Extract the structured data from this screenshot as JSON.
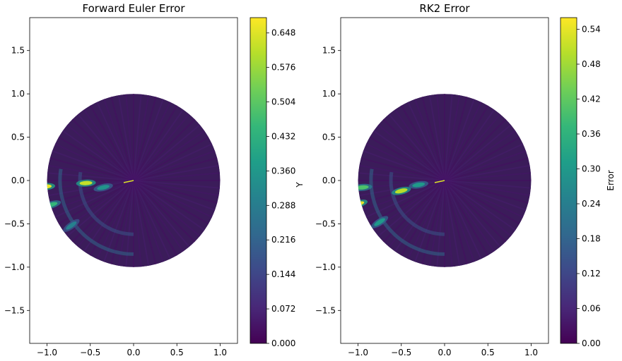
{
  "chart_data": [
    {
      "type": "heatmap",
      "title": "Forward Euler Error",
      "xlabel": "",
      "ylabel": "Y",
      "xlim": [
        -1.2,
        1.2
      ],
      "ylim": [
        -1.88,
        1.88
      ],
      "xticks": [
        -1.0,
        -0.5,
        0.0,
        0.5,
        1.0
      ],
      "xtick_labels": [
        "−1.0",
        "−0.5",
        "0.0",
        "0.5",
        "1.0"
      ],
      "yticks": [
        1.5,
        1.0,
        0.5,
        0.0,
        -0.5,
        -1.0,
        -1.5
      ],
      "ytick_labels": [
        "1.5",
        "1.0",
        "0.5",
        "0.0",
        "−0.5",
        "−1.0",
        "−1.5"
      ],
      "domain": "unit disk",
      "colormap": "viridis",
      "colorbar": {
        "label": "",
        "min": 0.0,
        "max": 0.68,
        "ticks": [
          0.0,
          0.072,
          0.144,
          0.216,
          0.288,
          0.36,
          0.432,
          0.504,
          0.576,
          0.648
        ],
        "tick_labels": [
          "0.000",
          "0.072",
          "0.144",
          "0.216",
          "0.288",
          "0.360",
          "0.432",
          "0.504",
          "0.576",
          "0.648"
        ]
      },
      "hotspots": [
        {
          "x": -1.02,
          "y": -0.07,
          "value": 0.66
        },
        {
          "x": -0.55,
          "y": -0.03,
          "value": 0.62
        },
        {
          "x": -0.95,
          "y": -0.28,
          "value": 0.45
        },
        {
          "x": -0.72,
          "y": -0.52,
          "value": 0.3
        },
        {
          "x": -0.35,
          "y": -0.08,
          "value": 0.35
        }
      ]
    },
    {
      "type": "heatmap",
      "title": "RK2 Error",
      "xlabel": "",
      "ylabel": "",
      "xlim": [
        -1.2,
        1.2
      ],
      "ylim": [
        -1.88,
        1.88
      ],
      "xticks": [
        -1.0,
        -0.5,
        0.0,
        0.5,
        1.0
      ],
      "xtick_labels": [
        "−1.0",
        "−0.5",
        "0.0",
        "0.5",
        "1.0"
      ],
      "yticks": [
        1.5,
        1.0,
        0.5,
        0.0,
        -0.5,
        -1.0,
        -1.5
      ],
      "ytick_labels": [
        "1.5",
        "1.0",
        "0.5",
        "0.0",
        "−0.5",
        "−1.0",
        "−1.5"
      ],
      "domain": "unit disk",
      "colormap": "viridis",
      "colorbar": {
        "label": "Error",
        "min": 0.0,
        "max": 0.56,
        "ticks": [
          0.0,
          0.06,
          0.12,
          0.18,
          0.24,
          0.3,
          0.36,
          0.42,
          0.48,
          0.54
        ],
        "tick_labels": [
          "0.00",
          "0.06",
          "0.12",
          "0.18",
          "0.24",
          "0.30",
          "0.36",
          "0.42",
          "0.48",
          "0.54"
        ]
      },
      "hotspots": [
        {
          "x": -1.0,
          "y": -0.27,
          "value": 0.54
        },
        {
          "x": -0.5,
          "y": -0.12,
          "value": 0.5
        },
        {
          "x": -0.95,
          "y": -0.08,
          "value": 0.4
        },
        {
          "x": -0.75,
          "y": -0.48,
          "value": 0.3
        },
        {
          "x": -0.3,
          "y": -0.05,
          "value": 0.3
        }
      ]
    }
  ],
  "colors": {
    "viridis_stops": [
      "#440154",
      "#482878",
      "#3e4989",
      "#31688e",
      "#26828e",
      "#1f9e89",
      "#35b779",
      "#6ece58",
      "#b5de2b",
      "#fde725"
    ],
    "background_low": "#3b1c5a"
  }
}
